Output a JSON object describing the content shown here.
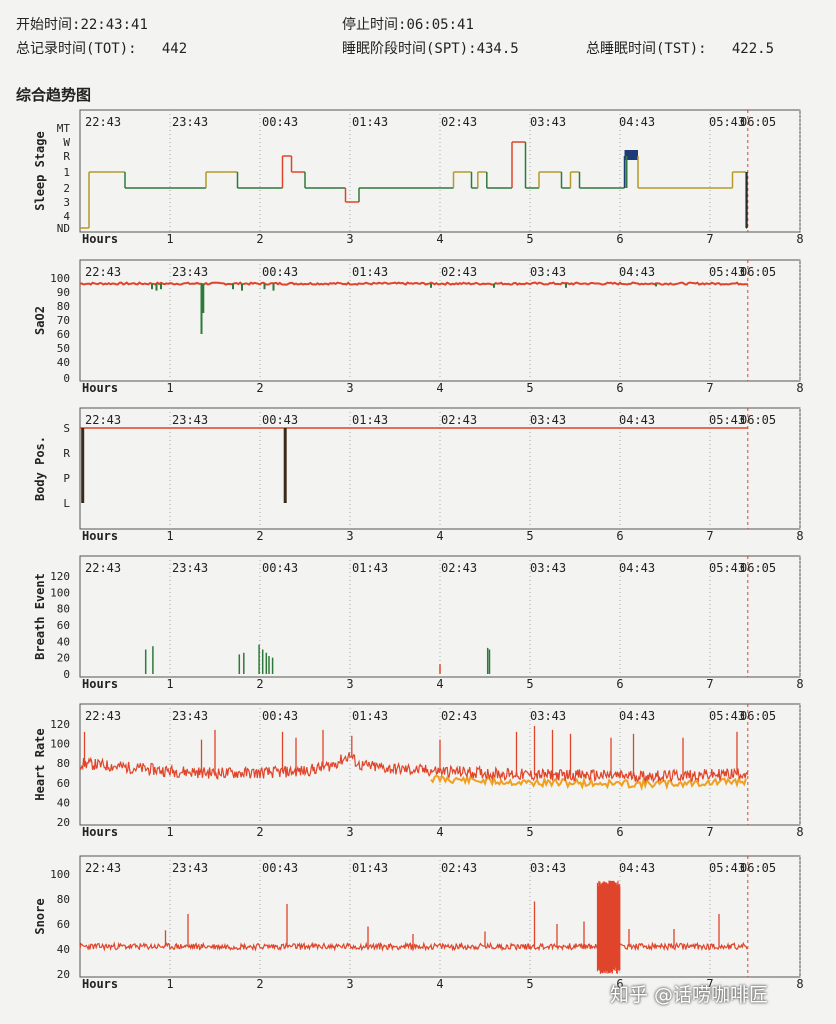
{
  "header": {
    "start_label": "开始时间:",
    "start_value": "22:43:41",
    "stop_label": "停止时间:",
    "stop_value": "06:05:41",
    "tot_label": "总记录时间(TOT):",
    "tot_value": "442",
    "spt_label": "睡眠阶段时间(SPT):",
    "spt_value": "434.5",
    "tst_label": "总睡眠时间(TST):",
    "tst_value": "422.5"
  },
  "section_title": "综合趋势图",
  "watermark": "知乎 @话唠咖啡匠",
  "colors": {
    "red": "#e0442a",
    "green": "#2e7a3a",
    "yellow": "#b59a2a",
    "orange": "#f0a020",
    "navy": "#1f3a78",
    "grid": "#aaaaaa"
  },
  "chart_data": [
    {
      "type": "line",
      "ylabel": "Sleep Stage",
      "xlabel": "Hours",
      "time_labels": [
        "22:43",
        "23:43",
        "00:43",
        "01:43",
        "02:43",
        "03:43",
        "04:43",
        "05:43",
        "06:05"
      ],
      "x_ticks": [
        "1",
        "2",
        "3",
        "4",
        "5",
        "6",
        "7",
        "8"
      ],
      "y_ticks": [
        "MT",
        "W",
        "R",
        "1",
        "2",
        "3",
        "4",
        "ND"
      ],
      "xlim": [
        0,
        8
      ],
      "segments": [
        {
          "x0": 0.0,
          "x1": 0.1,
          "stage": "ND",
          "color": "yellow"
        },
        {
          "x0": 0.1,
          "x1": 0.5,
          "stage": "1",
          "color": "yellow"
        },
        {
          "x0": 0.5,
          "x1": 1.4,
          "stage": "2",
          "color": "green"
        },
        {
          "x0": 1.4,
          "x1": 1.75,
          "stage": "1",
          "color": "yellow"
        },
        {
          "x0": 1.75,
          "x1": 2.25,
          "stage": "2",
          "color": "green"
        },
        {
          "x0": 2.25,
          "x1": 2.35,
          "stage": "R",
          "color": "red"
        },
        {
          "x0": 2.35,
          "x1": 2.5,
          "stage": "1",
          "color": "red"
        },
        {
          "x0": 2.5,
          "x1": 2.7,
          "stage": "2",
          "color": "green"
        },
        {
          "x0": 2.7,
          "x1": 2.95,
          "stage": "2",
          "color": "green"
        },
        {
          "x0": 2.95,
          "x1": 3.1,
          "stage": "3",
          "color": "red"
        },
        {
          "x0": 3.1,
          "x1": 4.15,
          "stage": "2",
          "color": "green"
        },
        {
          "x0": 4.15,
          "x1": 4.35,
          "stage": "1",
          "color": "yellow"
        },
        {
          "x0": 4.35,
          "x1": 4.42,
          "stage": "2",
          "color": "green"
        },
        {
          "x0": 4.42,
          "x1": 4.52,
          "stage": "1",
          "color": "yellow"
        },
        {
          "x0": 4.52,
          "x1": 4.8,
          "stage": "2",
          "color": "green"
        },
        {
          "x0": 4.8,
          "x1": 4.95,
          "stage": "W",
          "color": "red"
        },
        {
          "x0": 4.95,
          "x1": 5.1,
          "stage": "2",
          "color": "green"
        },
        {
          "x0": 5.1,
          "x1": 5.35,
          "stage": "1",
          "color": "yellow"
        },
        {
          "x0": 5.35,
          "x1": 5.45,
          "stage": "2",
          "color": "green"
        },
        {
          "x0": 5.45,
          "x1": 5.55,
          "stage": "1",
          "color": "yellow"
        },
        {
          "x0": 5.55,
          "x1": 6.05,
          "stage": "2",
          "color": "green"
        },
        {
          "x0": 6.05,
          "x1": 6.2,
          "stage": "R",
          "color": "navy"
        },
        {
          "x0": 6.2,
          "x1": 7.25,
          "stage": "2",
          "color": "yellow"
        },
        {
          "x0": 7.25,
          "x1": 7.4,
          "stage": "1",
          "color": "yellow"
        },
        {
          "x0": 7.4,
          "x1": 7.41,
          "stage": "ND",
          "color": "green"
        }
      ]
    },
    {
      "type": "line",
      "ylabel": "SaO2",
      "xlabel": "Hours",
      "time_labels": [
        "22:43",
        "23:43",
        "00:43",
        "01:43",
        "02:43",
        "03:43",
        "04:43",
        "05:43",
        "06:05"
      ],
      "x_ticks": [
        "1",
        "2",
        "3",
        "4",
        "5",
        "6",
        "7",
        "8"
      ],
      "y_ticks": [
        "100",
        "90",
        "80",
        "70",
        "60",
        "50",
        "40",
        "0"
      ],
      "baseline": 96,
      "dips": [
        {
          "x": 0.8,
          "value": 92
        },
        {
          "x": 0.85,
          "value": 91
        },
        {
          "x": 0.9,
          "value": 92
        },
        {
          "x": 1.35,
          "value": 60
        },
        {
          "x": 1.37,
          "value": 75
        },
        {
          "x": 1.7,
          "value": 92
        },
        {
          "x": 1.8,
          "value": 91
        },
        {
          "x": 2.05,
          "value": 92
        },
        {
          "x": 2.15,
          "value": 91
        },
        {
          "x": 3.9,
          "value": 93
        },
        {
          "x": 4.6,
          "value": 93
        },
        {
          "x": 5.4,
          "value": 93
        },
        {
          "x": 6.4,
          "value": 94
        }
      ]
    },
    {
      "type": "line",
      "ylabel": "Body Pos.",
      "xlabel": "Hours",
      "time_labels": [
        "22:43",
        "23:43",
        "00:43",
        "01:43",
        "02:43",
        "03:43",
        "04:43",
        "05:43",
        "06:05"
      ],
      "x_ticks": [
        "1",
        "2",
        "3",
        "4",
        "5",
        "6",
        "7",
        "8"
      ],
      "y_ticks": [
        "S",
        "R",
        "P",
        "L"
      ],
      "position": "S",
      "spikes_to_L": [
        0.03,
        2.28
      ]
    },
    {
      "type": "bar",
      "ylabel": "Breath Event",
      "xlabel": "Hours",
      "time_labels": [
        "22:43",
        "23:43",
        "00:43",
        "01:43",
        "02:43",
        "03:43",
        "04:43",
        "05:43",
        "06:05"
      ],
      "x_ticks": [
        "1",
        "2",
        "3",
        "4",
        "5",
        "6",
        "7",
        "8"
      ],
      "y_ticks": [
        "120",
        "100",
        "80",
        "60",
        "40",
        "20",
        "0"
      ],
      "ylim": [
        0,
        120
      ],
      "events": [
        {
          "x": 0.73,
          "value": 30,
          "color": "green"
        },
        {
          "x": 0.81,
          "value": 34,
          "color": "green"
        },
        {
          "x": 1.77,
          "value": 24,
          "color": "green"
        },
        {
          "x": 1.82,
          "value": 26,
          "color": "green"
        },
        {
          "x": 1.99,
          "value": 36,
          "color": "green"
        },
        {
          "x": 2.03,
          "value": 30,
          "color": "green"
        },
        {
          "x": 2.07,
          "value": 26,
          "color": "green"
        },
        {
          "x": 2.1,
          "value": 22,
          "color": "green"
        },
        {
          "x": 2.14,
          "value": 20,
          "color": "green"
        },
        {
          "x": 4.0,
          "value": 12,
          "color": "red"
        },
        {
          "x": 4.53,
          "value": 32,
          "color": "green"
        },
        {
          "x": 4.55,
          "value": 30,
          "color": "green"
        }
      ]
    },
    {
      "type": "line",
      "ylabel": "Heart Rate",
      "xlabel": "Hours",
      "time_labels": [
        "22:43",
        "23:43",
        "00:43",
        "01:43",
        "02:43",
        "03:43",
        "04:43",
        "05:43",
        "06:05"
      ],
      "x_ticks": [
        "1",
        "2",
        "3",
        "4",
        "5",
        "6",
        "7",
        "8"
      ],
      "y_ticks": [
        "120",
        "100",
        "80",
        "60",
        "40",
        "20"
      ],
      "ylim": [
        20,
        120
      ],
      "trend": [
        {
          "x": 0.0,
          "value": 80
        },
        {
          "x": 0.5,
          "value": 76
        },
        {
          "x": 1.0,
          "value": 72
        },
        {
          "x": 1.5,
          "value": 70
        },
        {
          "x": 2.0,
          "value": 70
        },
        {
          "x": 2.5,
          "value": 72
        },
        {
          "x": 2.8,
          "value": 78
        },
        {
          "x": 3.0,
          "value": 88
        },
        {
          "x": 3.1,
          "value": 78
        },
        {
          "x": 3.5,
          "value": 74
        },
        {
          "x": 4.0,
          "value": 72
        },
        {
          "x": 4.5,
          "value": 70
        },
        {
          "x": 5.0,
          "value": 68
        },
        {
          "x": 5.5,
          "value": 68
        },
        {
          "x": 6.0,
          "value": 67
        },
        {
          "x": 6.5,
          "value": 67
        },
        {
          "x": 7.0,
          "value": 68
        },
        {
          "x": 7.4,
          "value": 70
        }
      ],
      "spikes": [
        {
          "x": 0.05,
          "value": 112
        },
        {
          "x": 1.35,
          "value": 104
        },
        {
          "x": 1.5,
          "value": 114
        },
        {
          "x": 2.25,
          "value": 112
        },
        {
          "x": 2.4,
          "value": 106
        },
        {
          "x": 2.7,
          "value": 114
        },
        {
          "x": 3.02,
          "value": 108
        },
        {
          "x": 4.0,
          "value": 104
        },
        {
          "x": 4.85,
          "value": 112
        },
        {
          "x": 5.05,
          "value": 118
        },
        {
          "x": 5.25,
          "value": 114
        },
        {
          "x": 5.45,
          "value": 110
        },
        {
          "x": 5.9,
          "value": 106
        },
        {
          "x": 6.15,
          "value": 110
        },
        {
          "x": 6.7,
          "value": 106
        },
        {
          "x": 7.3,
          "value": 112
        }
      ]
    },
    {
      "type": "line",
      "ylabel": "Snore",
      "xlabel": "Hours",
      "time_labels": [
        "22:43",
        "23:43",
        "00:43",
        "01:43",
        "02:43",
        "03:43",
        "04:43",
        "05:43",
        "06:05"
      ],
      "x_ticks": [
        "1",
        "2",
        "3",
        "4",
        "5",
        "6",
        "7",
        "8"
      ],
      "y_ticks": [
        "100",
        "80",
        "60",
        "40",
        "20"
      ],
      "ylim": [
        20,
        100
      ],
      "baseline": 42,
      "spikes": [
        {
          "x": 0.95,
          "value": 55
        },
        {
          "x": 1.2,
          "value": 68
        },
        {
          "x": 2.3,
          "value": 76
        },
        {
          "x": 3.2,
          "value": 58
        },
        {
          "x": 3.7,
          "value": 52
        },
        {
          "x": 4.5,
          "value": 54
        },
        {
          "x": 5.05,
          "value": 78
        },
        {
          "x": 5.3,
          "value": 60
        },
        {
          "x": 5.6,
          "value": 62
        },
        {
          "x": 6.1,
          "value": 56
        },
        {
          "x": 6.6,
          "value": 56
        },
        {
          "x": 7.1,
          "value": 68
        }
      ],
      "dense_block": {
        "x0": 5.75,
        "x1": 6.0,
        "low": 20,
        "high": 95
      }
    }
  ]
}
